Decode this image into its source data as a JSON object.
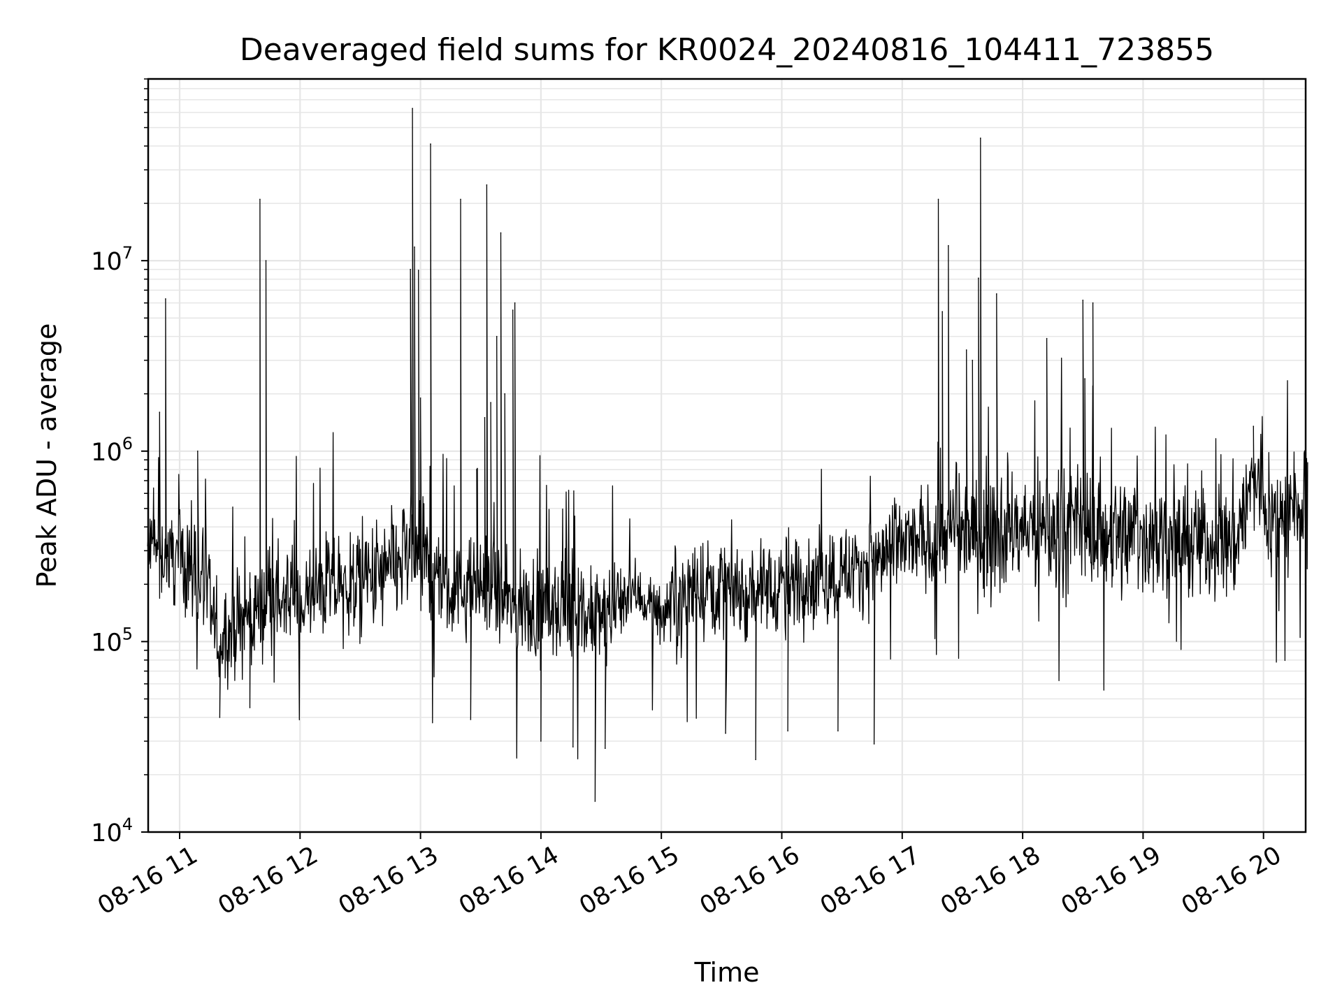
{
  "chart_data": {
    "type": "line",
    "title": "Deaveraged field sums for KR0024_20240816_104411_723855",
    "xlabel": "Time",
    "ylabel": "Peak ADU - average",
    "yscale": "log",
    "grid": true,
    "x_range": [
      "08-16 10:44",
      "08-16 20:22"
    ],
    "ylim": [
      10000,
      90000000
    ],
    "x_ticks": [
      "08-16 11",
      "08-16 12",
      "08-16 13",
      "08-16 14",
      "08-16 15",
      "08-16 16",
      "08-16 17",
      "08-16 18",
      "08-16 19",
      "08-16 20"
    ],
    "y_ticks": [
      {
        "base": "10",
        "exp": "4"
      },
      {
        "base": "10",
        "exp": "5"
      },
      {
        "base": "10",
        "exp": "6"
      },
      {
        "base": "10",
        "exp": "7"
      }
    ],
    "line_color": "#000000",
    "grid_color": "#e6e6e6",
    "baseline": [
      [
        "08-16 10:44",
        300000
      ],
      [
        "08-16 11:00",
        280000
      ],
      [
        "08-16 11:10",
        230000
      ],
      [
        "08-16 11:20",
        100000
      ],
      [
        "08-16 11:30",
        120000
      ],
      [
        "08-16 11:45",
        180000
      ],
      [
        "08-16 12:00",
        150000
      ],
      [
        "08-16 12:10",
        190000
      ],
      [
        "08-16 12:30",
        200000
      ],
      [
        "08-16 12:45",
        230000
      ],
      [
        "08-16 12:55",
        300000
      ],
      [
        "08-16 13:15",
        180000
      ],
      [
        "08-16 13:30",
        200000
      ],
      [
        "08-16 13:45",
        150000
      ],
      [
        "08-16 14:00",
        150000
      ],
      [
        "08-16 14:30",
        130000
      ],
      [
        "08-16 14:45",
        190000
      ],
      [
        "08-16 15:00",
        140000
      ],
      [
        "08-16 15:15",
        200000
      ],
      [
        "08-16 15:45",
        190000
      ],
      [
        "08-16 16:00",
        200000
      ],
      [
        "08-16 16:30",
        230000
      ],
      [
        "08-16 16:45",
        260000
      ],
      [
        "08-16 17:00",
        320000
      ],
      [
        "08-16 17:30",
        380000
      ],
      [
        "08-16 18:00",
        380000
      ],
      [
        "08-16 18:30",
        400000
      ],
      [
        "08-16 19:00",
        360000
      ],
      [
        "08-16 19:45",
        330000
      ],
      [
        "08-16 19:55",
        700000
      ],
      [
        "08-16 20:05",
        450000
      ],
      [
        "08-16 20:22",
        480000
      ]
    ],
    "peaks": [
      [
        "08-16 10:50",
        1600000
      ],
      [
        "08-16 10:53",
        6300000
      ],
      [
        "08-16 11:09",
        1000000
      ],
      [
        "08-16 11:40",
        21000000
      ],
      [
        "08-16 11:43",
        10000000
      ],
      [
        "08-16 12:55",
        9000000
      ],
      [
        "08-16 12:56",
        63000000
      ],
      [
        "08-16 12:57",
        11800000
      ],
      [
        "08-16 12:59",
        8900000
      ],
      [
        "08-16 13:00",
        1900000
      ],
      [
        "08-16 13:05",
        41000000
      ],
      [
        "08-16 13:20",
        21000000
      ],
      [
        "08-16 13:28",
        800000
      ],
      [
        "08-16 13:32",
        1500000
      ],
      [
        "08-16 13:33",
        25000000
      ],
      [
        "08-16 13:35",
        1800000
      ],
      [
        "08-16 13:38",
        4000000
      ],
      [
        "08-16 13:40",
        14000000
      ],
      [
        "08-16 13:42",
        2000000
      ],
      [
        "08-16 13:46",
        5500000
      ],
      [
        "08-16 13:47",
        6000000
      ],
      [
        "08-16 17:18",
        21000000
      ],
      [
        "08-16 17:20",
        5400000
      ],
      [
        "08-16 17:23",
        12000000
      ],
      [
        "08-16 17:32",
        3400000
      ],
      [
        "08-16 17:35",
        3000000
      ],
      [
        "08-16 17:38",
        8100000
      ],
      [
        "08-16 17:39",
        44000000
      ],
      [
        "08-16 17:47",
        6700000
      ],
      [
        "08-16 18:12",
        3900000
      ],
      [
        "08-16 18:30",
        6200000
      ],
      [
        "08-16 18:31",
        2400000
      ],
      [
        "08-16 18:35",
        6000000
      ],
      [
        "08-16 19:55",
        1350000
      ]
    ],
    "dips": [
      [
        "08-16 11:20",
        40000
      ],
      [
        "08-16 11:35",
        45000
      ],
      [
        "08-16 13:25",
        39000
      ],
      [
        "08-16 14:00",
        30000
      ],
      [
        "08-16 14:16",
        28000
      ],
      [
        "08-16 14:27",
        14500
      ],
      [
        "08-16 14:32",
        27500
      ],
      [
        "08-16 15:32",
        33000
      ],
      [
        "08-16 15:47",
        24000
      ],
      [
        "08-16 16:03",
        34000
      ],
      [
        "08-16 16:28",
        34000
      ],
      [
        "08-16 16:46",
        29000
      ]
    ]
  }
}
